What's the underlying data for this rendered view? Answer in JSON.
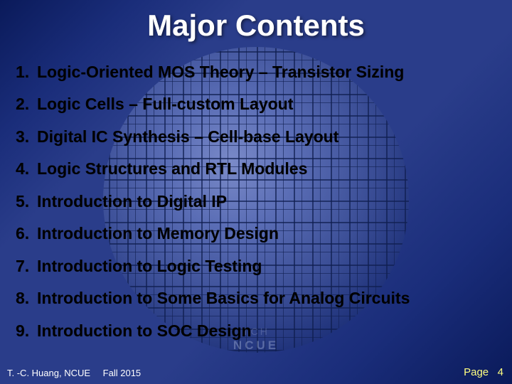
{
  "title": "Major Contents",
  "items": [
    {
      "n": "1.",
      "t": "Logic-Oriented MOS Theory – Transistor Sizing"
    },
    {
      "n": "2.",
      "t": "Logic Cells – Full-custom Layout"
    },
    {
      "n": "3.",
      "t": "Digital IC Synthesis – Cell-base Layout"
    },
    {
      "n": "4.",
      "t": "Logic Structures and RTL Modules"
    },
    {
      "n": "5.",
      "t": "Introduction to Digital IP"
    },
    {
      "n": "6.",
      "t": "Introduction to Memory Design"
    },
    {
      "n": "7.",
      "t": "Introduction to Logic Testing"
    },
    {
      "n": "8.",
      "t": "Introduction to Some Basics for Analog Circuits"
    },
    {
      "n": "9.",
      "t": "Introduction to SOC Design"
    }
  ],
  "watermark": {
    "top": "TCH",
    "bottom": "NCUE"
  },
  "footer": {
    "author": "T. -C. Huang, NCUE",
    "semester": "Fall 2015",
    "page_label": "Page",
    "page_number": "4"
  },
  "colors": {
    "title": "#ffffff",
    "item_text": "#000000",
    "footer_left": "#ffffff",
    "footer_right": "#ffff80",
    "bg_dark": "#0a1a5a",
    "bg_light": "#2a3d8a"
  }
}
